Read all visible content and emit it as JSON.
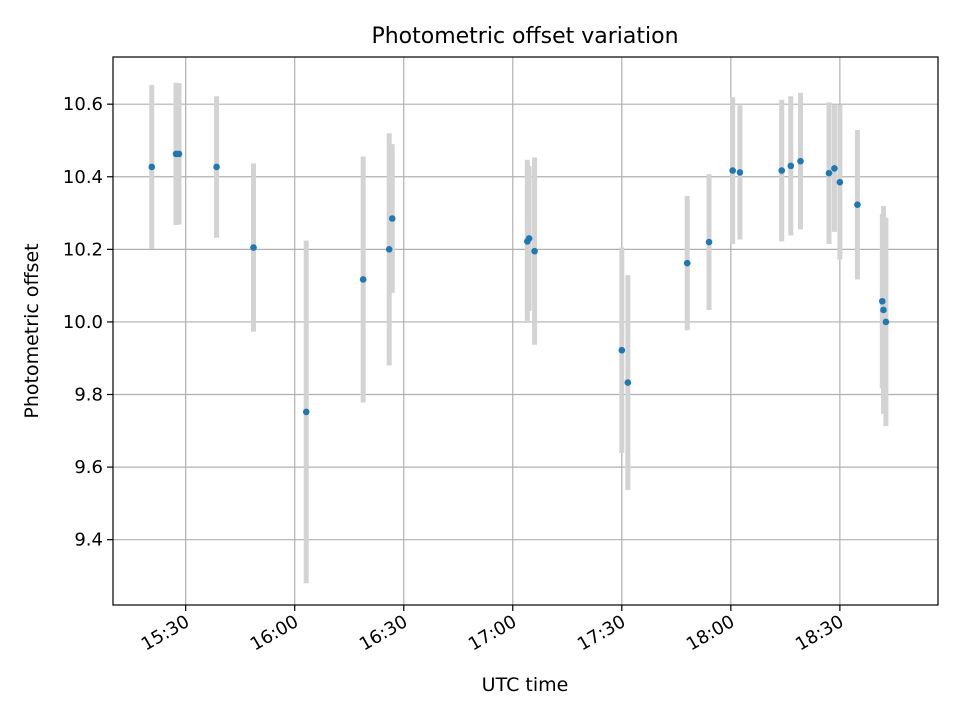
{
  "chart_data": {
    "type": "scatter",
    "title": "Photometric offset variation",
    "xlabel": "UTC time",
    "ylabel": "Photometric offset",
    "xlim": [
      "15:10",
      "18:57"
    ],
    "ylim": [
      9.22,
      10.73
    ],
    "x_ticks": [
      "15:30",
      "16:00",
      "16:30",
      "17:00",
      "17:30",
      "18:00",
      "18:30"
    ],
    "y_ticks": [
      "9.4",
      "9.6",
      "9.8",
      "10.0",
      "10.2",
      "10.4",
      "10.6"
    ],
    "grid": true,
    "colors": {
      "point": "#1f77b4",
      "errorbar": "#d3d3d3",
      "grid": "#b0b0b0"
    },
    "points": [
      {
        "x": "15:20:40",
        "y": 10.427,
        "err": 0.226
      },
      {
        "x": "15:27:20",
        "y": 10.463,
        "err": 0.196
      },
      {
        "x": "15:28:10",
        "y": 10.463,
        "err": 0.195
      },
      {
        "x": "15:38:30",
        "y": 10.427,
        "err": 0.195
      },
      {
        "x": "15:48:40",
        "y": 10.205,
        "err": 0.232
      },
      {
        "x": "16:03:10",
        "y": 9.752,
        "err": 0.472
      },
      {
        "x": "16:18:50",
        "y": 10.117,
        "err": 0.339
      },
      {
        "x": "16:26:00",
        "y": 10.2,
        "err": 0.32
      },
      {
        "x": "16:26:50",
        "y": 10.285,
        "err": 0.205
      },
      {
        "x": "17:04:00",
        "y": 10.222,
        "err": 0.225
      },
      {
        "x": "17:04:30",
        "y": 10.23,
        "err": 0.2
      },
      {
        "x": "17:06:00",
        "y": 10.195,
        "err": 0.258
      },
      {
        "x": "17:30:00",
        "y": 9.922,
        "err": 0.283
      },
      {
        "x": "17:31:40",
        "y": 9.833,
        "err": 0.296
      },
      {
        "x": "17:48:00",
        "y": 10.162,
        "err": 0.185
      },
      {
        "x": "17:54:00",
        "y": 10.22,
        "err": 0.187
      },
      {
        "x": "18:00:30",
        "y": 10.417,
        "err": 0.202
      },
      {
        "x": "18:02:30",
        "y": 10.412,
        "err": 0.185
      },
      {
        "x": "18:14:00",
        "y": 10.417,
        "err": 0.195
      },
      {
        "x": "18:16:30",
        "y": 10.43,
        "err": 0.192
      },
      {
        "x": "18:19:10",
        "y": 10.443,
        "err": 0.188
      },
      {
        "x": "18:27:00",
        "y": 10.41,
        "err": 0.195
      },
      {
        "x": "18:28:30",
        "y": 10.423,
        "err": 0.175
      },
      {
        "x": "18:30:00",
        "y": 10.385,
        "err": 0.213
      },
      {
        "x": "18:34:50",
        "y": 10.323,
        "err": 0.206
      },
      {
        "x": "18:41:40",
        "y": 10.057,
        "err": 0.24
      },
      {
        "x": "18:42:00",
        "y": 10.033,
        "err": 0.286
      },
      {
        "x": "18:42:40",
        "y": 10.0,
        "err": 0.287
      }
    ]
  }
}
